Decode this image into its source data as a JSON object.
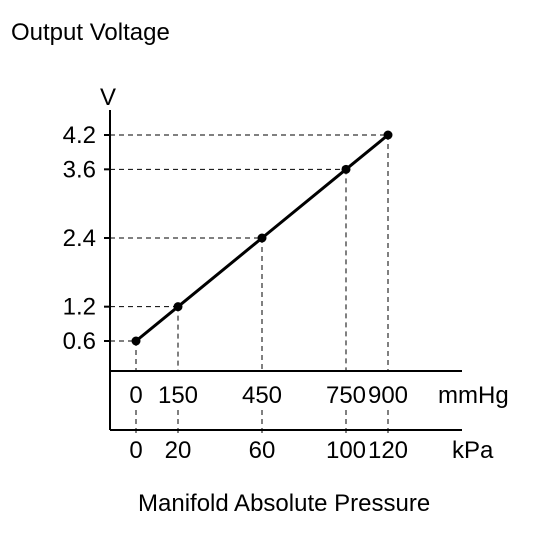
{
  "chart_data": {
    "type": "line",
    "title": "Output Voltage",
    "ylabel": "V",
    "xlabel": "Manifold Absolute Pressure",
    "x_unit_primary": "mmHg",
    "x_unit_secondary": "kPa",
    "x": [
      0,
      150,
      450,
      750,
      900
    ],
    "x_labels": [
      "0",
      "150",
      "450",
      "750",
      "900"
    ],
    "x_secondary_labels": [
      "0",
      "20",
      "60",
      "100",
      "120"
    ],
    "y": [
      0.6,
      1.2,
      2.4,
      3.6,
      4.2
    ],
    "y_ticks": [
      0.6,
      1.2,
      2.4,
      3.6,
      4.2
    ],
    "y_tick_labels": [
      "0.6",
      "1.2",
      "2.4",
      "3.6",
      "4.2"
    ],
    "xlim": [
      0,
      900
    ],
    "grid": "dashed guides to each point"
  }
}
